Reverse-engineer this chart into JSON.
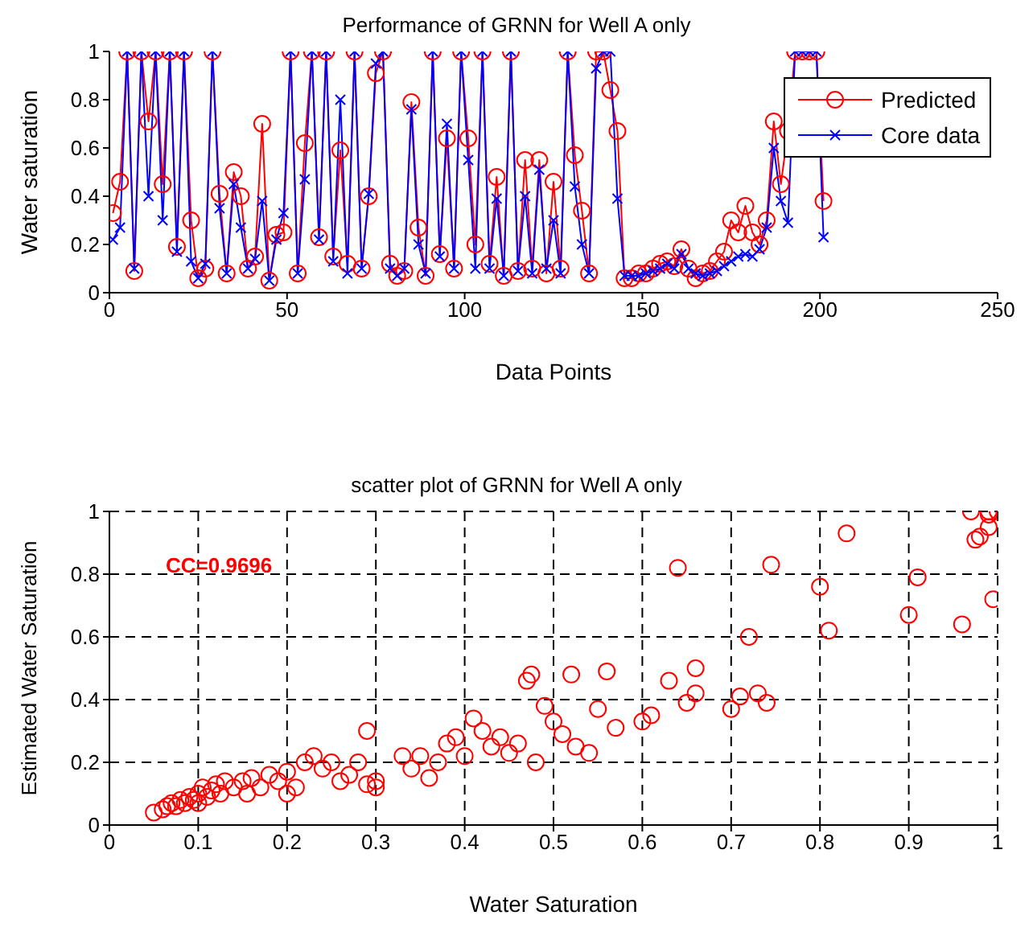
{
  "chart_data": [
    {
      "type": "line",
      "title": "Performance of GRNN for Well A only",
      "xlabel": "Data Points",
      "ylabel": "Water saturation",
      "x": [
        1,
        3,
        5,
        7,
        9,
        11,
        13,
        15,
        17,
        19,
        21,
        23,
        25,
        27,
        29,
        31,
        33,
        35,
        37,
        39,
        41,
        43,
        45,
        47,
        49,
        51,
        53,
        55,
        57,
        59,
        61,
        63,
        65,
        67,
        69,
        71,
        73,
        75,
        77,
        79,
        81,
        83,
        85,
        87,
        89,
        91,
        93,
        95,
        97,
        99,
        101,
        103,
        105,
        107,
        109,
        111,
        113,
        115,
        117,
        119,
        121,
        123,
        125,
        127,
        129,
        131,
        133,
        135,
        137,
        139,
        141,
        143,
        145,
        147,
        149,
        151,
        153,
        155,
        157,
        159,
        161,
        163,
        165,
        167,
        169,
        171,
        173,
        175,
        177,
        179,
        181,
        183,
        185,
        187,
        189,
        191,
        193,
        195,
        197,
        199,
        201
      ],
      "series": [
        {
          "name": "Predicted",
          "color": "#ff0000",
          "marker": "circle",
          "values": [
            0.33,
            0.46,
            1,
            0.09,
            1,
            0.71,
            1,
            0.45,
            1,
            0.19,
            1,
            0.3,
            0.06,
            0.1,
            1,
            0.41,
            0.08,
            0.5,
            0.4,
            0.1,
            0.15,
            0.7,
            0.05,
            0.24,
            0.25,
            1,
            0.08,
            0.62,
            1,
            0.23,
            1,
            0.15,
            0.59,
            0.12,
            1,
            0.1,
            0.4,
            0.91,
            1,
            0.12,
            0.07,
            0.09,
            0.79,
            0.27,
            0.07,
            1,
            0.16,
            0.64,
            0.1,
            1,
            0.64,
            0.2,
            1,
            0.12,
            0.48,
            0.07,
            1,
            0.09,
            0.55,
            0.1,
            0.55,
            0.08,
            0.46,
            0.1,
            1,
            0.57,
            0.34,
            0.08,
            1,
            1,
            0.84,
            0.67,
            0.06,
            0.06,
            0.08,
            0.08,
            0.1,
            0.12,
            0.13,
            0.11,
            0.18,
            0.1,
            0.06,
            0.08,
            0.09,
            0.13,
            0.17,
            0.3,
            0.25,
            0.36,
            0.25,
            0.2,
            0.3,
            0.71,
            0.45,
            0.67,
            1,
            1,
            1,
            1,
            0.38
          ]
        },
        {
          "name": "Core data",
          "color": "#0000ff",
          "marker": "cross",
          "values": [
            0.22,
            0.27,
            1,
            0.1,
            1,
            0.4,
            1,
            0.3,
            1,
            0.17,
            1,
            0.13,
            0.06,
            0.12,
            1,
            0.35,
            0.08,
            0.45,
            0.27,
            0.1,
            0.14,
            0.38,
            0.05,
            0.22,
            0.33,
            1,
            0.08,
            0.47,
            1,
            0.22,
            1,
            0.13,
            0.8,
            0.08,
            1,
            0.1,
            0.41,
            0.95,
            1,
            0.1,
            0.07,
            0.1,
            0.76,
            0.2,
            0.08,
            1,
            0.15,
            0.7,
            0.1,
            1,
            0.55,
            0.1,
            1,
            0.1,
            0.39,
            0.07,
            1,
            0.09,
            0.4,
            0.08,
            0.51,
            0.1,
            0.3,
            0.08,
            1,
            0.44,
            0.2,
            0.08,
            0.93,
            1,
            1,
            0.39,
            0.07,
            0.07,
            0.07,
            0.08,
            0.09,
            0.1,
            0.12,
            0.1,
            0.16,
            0.1,
            0.08,
            0.07,
            0.08,
            0.09,
            0.11,
            0.13,
            0.15,
            0.16,
            0.15,
            0.18,
            0.27,
            0.6,
            0.38,
            0.29,
            1,
            1,
            1,
            1,
            0.23
          ]
        }
      ],
      "xlim": [
        0,
        250
      ],
      "xticks": [
        0,
        50,
        100,
        150,
        200,
        250
      ],
      "ylim": [
        0,
        1
      ],
      "yticks": [
        0,
        0.2,
        0.4,
        0.6,
        0.8,
        1
      ],
      "legend": "top right",
      "grid": false,
      "line_style": "solid"
    },
    {
      "type": "scatter",
      "title": "scatter plot of GRNN for Well A only",
      "xlabel": "Water Saturation",
      "ylabel": "Estimated Water Saturation",
      "annotations": [
        "CC=0.9696"
      ],
      "series": [
        {
          "color": "#ff0000",
          "marker": "circle",
          "x": [
            0.05,
            0.06,
            0.065,
            0.07,
            0.075,
            0.08,
            0.085,
            0.09,
            0.095,
            0.1,
            0.1,
            0.105,
            0.11,
            0.115,
            0.12,
            0.125,
            0.13,
            0.14,
            0.15,
            0.155,
            0.16,
            0.17,
            0.18,
            0.19,
            0.2,
            0.2,
            0.21,
            0.22,
            0.23,
            0.24,
            0.25,
            0.26,
            0.27,
            0.28,
            0.29,
            0.29,
            0.3,
            0.3,
            0.33,
            0.34,
            0.35,
            0.36,
            0.37,
            0.38,
            0.39,
            0.4,
            0.41,
            0.42,
            0.43,
            0.44,
            0.45,
            0.46,
            0.47,
            0.475,
            0.48,
            0.49,
            0.5,
            0.51,
            0.52,
            0.525,
            0.54,
            0.55,
            0.56,
            0.57,
            0.6,
            0.61,
            0.63,
            0.64,
            0.65,
            0.66,
            0.66,
            0.7,
            0.71,
            0.72,
            0.73,
            0.74,
            0.745,
            0.8,
            0.81,
            0.83,
            0.9,
            0.91,
            0.96,
            0.97,
            0.975,
            0.98,
            0.99,
            0.99,
            1,
            0.995,
            0.99
          ],
          "values": [
            0.04,
            0.05,
            0.06,
            0.07,
            0.06,
            0.08,
            0.07,
            0.09,
            0.08,
            0.1,
            0.07,
            0.12,
            0.09,
            0.11,
            0.13,
            0.1,
            0.14,
            0.12,
            0.14,
            0.1,
            0.15,
            0.12,
            0.16,
            0.14,
            0.1,
            0.17,
            0.12,
            0.2,
            0.22,
            0.18,
            0.2,
            0.14,
            0.16,
            0.2,
            0.3,
            0.13,
            0.14,
            0.12,
            0.22,
            0.18,
            0.22,
            0.15,
            0.2,
            0.26,
            0.28,
            0.22,
            0.34,
            0.3,
            0.25,
            0.28,
            0.23,
            0.26,
            0.46,
            0.48,
            0.2,
            0.38,
            0.33,
            0.29,
            0.48,
            0.25,
            0.23,
            0.37,
            0.49,
            0.31,
            0.33,
            0.35,
            0.46,
            0.82,
            0.39,
            0.42,
            0.5,
            0.37,
            0.41,
            0.6,
            0.42,
            0.39,
            0.83,
            0.76,
            0.62,
            0.93,
            0.67,
            0.79,
            0.64,
            1,
            0.91,
            0.92,
            0.99,
            0.95,
            1,
            0.72,
            1
          ]
        }
      ],
      "xlim": [
        0,
        1
      ],
      "xticks": [
        0,
        0.1,
        0.2,
        0.3,
        0.4,
        0.5,
        0.6,
        0.7,
        0.8,
        0.9,
        1
      ],
      "ylim": [
        0,
        1
      ],
      "yticks": [
        0,
        0.2,
        0.4,
        0.6,
        0.8,
        1
      ],
      "grid": true,
      "legend": false
    }
  ]
}
